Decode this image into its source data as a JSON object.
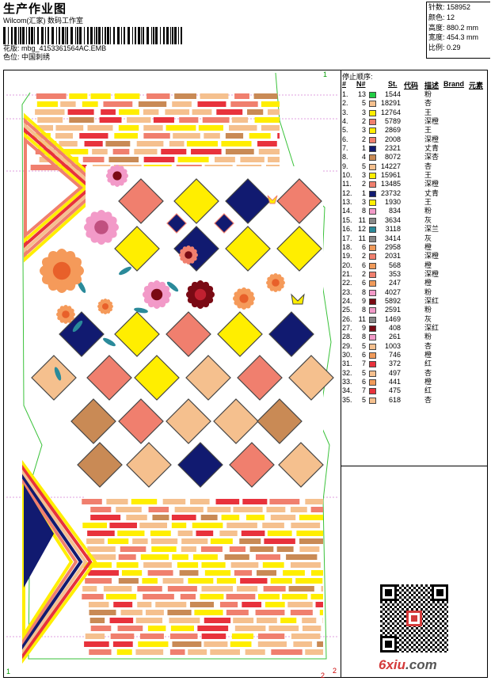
{
  "header": {
    "title": "生产作业图",
    "company": "Wilcom(汇家) 数码工作室",
    "pattern_label": "花版:",
    "pattern_value": "mbg_4153361564AC.EMB",
    "color_label": "色位:",
    "color_value": "中国刺绣"
  },
  "stats": [
    {
      "label": "针数:",
      "value": "158952"
    },
    {
      "label": "颜色:",
      "value": "12"
    },
    {
      "label": "高度:",
      "value": "880.2 mm"
    },
    {
      "label": "宽度:",
      "value": "454.3 mm"
    },
    {
      "label": "比例:",
      "value": "0.29"
    }
  ],
  "table": {
    "title": "停止顺序:",
    "columns": [
      "#",
      "N#",
      "St.",
      "代码",
      "描述",
      "Brand",
      "元素"
    ],
    "rows": [
      {
        "idx": "1.",
        "n": "13",
        "st": "1544",
        "desc": "粉",
        "color": "#22cc44"
      },
      {
        "idx": "2.",
        "n": "5",
        "st": "18291",
        "desc": "杏",
        "color": "#f5c08e"
      },
      {
        "idx": "3.",
        "n": "3",
        "st": "12764",
        "desc": "王",
        "color": "#ffee00"
      },
      {
        "idx": "4.",
        "n": "2",
        "st": "5789",
        "desc": "深橙",
        "color": "#f07f6e"
      },
      {
        "idx": "5.",
        "n": "3",
        "st": "2869",
        "desc": "王",
        "color": "#ffee00"
      },
      {
        "idx": "6.",
        "n": "2",
        "st": "2008",
        "desc": "深橙",
        "color": "#f07f6e"
      },
      {
        "idx": "7.",
        "n": "1",
        "st": "2321",
        "desc": "丈青",
        "color": "#111a70"
      },
      {
        "idx": "8.",
        "n": "4",
        "st": "8072",
        "desc": "深杏",
        "color": "#c98a55"
      },
      {
        "idx": "9.",
        "n": "5",
        "st": "14227",
        "desc": "杏",
        "color": "#f5c08e"
      },
      {
        "idx": "10.",
        "n": "3",
        "st": "15961",
        "desc": "王",
        "color": "#ffee00"
      },
      {
        "idx": "11.",
        "n": "2",
        "st": "13485",
        "desc": "深橙",
        "color": "#f07f6e"
      },
      {
        "idx": "12.",
        "n": "1",
        "st": "23732",
        "desc": "丈青",
        "color": "#111a70"
      },
      {
        "idx": "13.",
        "n": "3",
        "st": "1930",
        "desc": "王",
        "color": "#ffee00"
      },
      {
        "idx": "14.",
        "n": "8",
        "st": "834",
        "desc": "粉",
        "color": "#f29ac8"
      },
      {
        "idx": "15.",
        "n": "11",
        "st": "3634",
        "desc": "灰",
        "color": "#888888"
      },
      {
        "idx": "16.",
        "n": "12",
        "st": "3118",
        "desc": "深兰",
        "color": "#2a8a9a"
      },
      {
        "idx": "17.",
        "n": "11",
        "st": "3414",
        "desc": "灰",
        "color": "#888888"
      },
      {
        "idx": "18.",
        "n": "6",
        "st": "2958",
        "desc": "橙",
        "color": "#f09a5a"
      },
      {
        "idx": "19.",
        "n": "2",
        "st": "2031",
        "desc": "深橙",
        "color": "#f07f6e"
      },
      {
        "idx": "20.",
        "n": "6",
        "st": "568",
        "desc": "橙",
        "color": "#f09a5a"
      },
      {
        "idx": "21.",
        "n": "2",
        "st": "353",
        "desc": "深橙",
        "color": "#f07f6e"
      },
      {
        "idx": "22.",
        "n": "6",
        "st": "247",
        "desc": "橙",
        "color": "#f09a5a"
      },
      {
        "idx": "23.",
        "n": "8",
        "st": "4027",
        "desc": "粉",
        "color": "#f29ac8"
      },
      {
        "idx": "24.",
        "n": "9",
        "st": "5892",
        "desc": "深红",
        "color": "#7a0a14"
      },
      {
        "idx": "25.",
        "n": "8",
        "st": "2591",
        "desc": "粉",
        "color": "#f29ac8"
      },
      {
        "idx": "26.",
        "n": "11",
        "st": "1469",
        "desc": "灰",
        "color": "#888888"
      },
      {
        "idx": "27.",
        "n": "9",
        "st": "408",
        "desc": "深红",
        "color": "#7a0a14"
      },
      {
        "idx": "28.",
        "n": "8",
        "st": "261",
        "desc": "粉",
        "color": "#f29ac8"
      },
      {
        "idx": "29.",
        "n": "5",
        "st": "1003",
        "desc": "杏",
        "color": "#f5c08e"
      },
      {
        "idx": "30.",
        "n": "6",
        "st": "746",
        "desc": "橙",
        "color": "#f09a5a"
      },
      {
        "idx": "31.",
        "n": "7",
        "st": "372",
        "desc": "红",
        "color": "#e8323c"
      },
      {
        "idx": "32.",
        "n": "5",
        "st": "497",
        "desc": "杏",
        "color": "#f5c08e"
      },
      {
        "idx": "33.",
        "n": "6",
        "st": "441",
        "desc": "橙",
        "color": "#f09a5a"
      },
      {
        "idx": "34.",
        "n": "7",
        "st": "475",
        "desc": "红",
        "color": "#e8323c"
      },
      {
        "idx": "35.",
        "n": "5",
        "st": "618",
        "desc": "杏",
        "color": "#f5c08e"
      }
    ]
  },
  "frame": {
    "corner_tl": "1",
    "corner_tr": "1",
    "corner_bl": "1",
    "corner_br_a": "2",
    "corner_br_b": "2"
  },
  "watermark": {
    "brand": "6xiu",
    "suffix": ".com"
  },
  "palette": {
    "navy": "#111a70",
    "yellow": "#ffee00",
    "coral": "#f07f6e",
    "peach": "#f5c08e",
    "tan": "#c98a55",
    "red": "#e8323c",
    "white": "#ffffff"
  }
}
